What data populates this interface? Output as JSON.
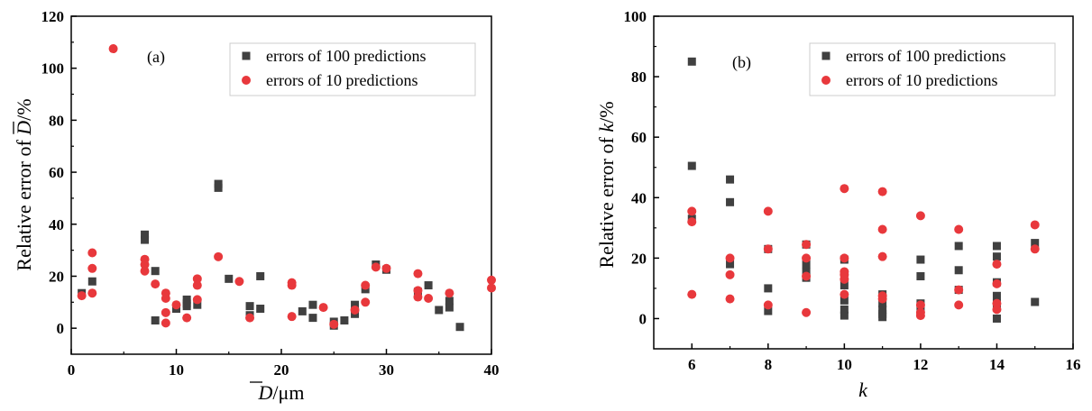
{
  "chart_data": [
    {
      "type": "scatter",
      "panel_label": "(a)",
      "xlabel_var": "D",
      "xlabel_suffix": "/μm",
      "ylabel_prefix": "Relative error of ",
      "ylabel_var": "D",
      "ylabel_suffix": "/%",
      "xlim": [
        0,
        40
      ],
      "ylim": [
        -10,
        120
      ],
      "xticks": [
        "0",
        "10",
        "20",
        "30",
        "40"
      ],
      "xtick_values": [
        0,
        10,
        20,
        30,
        40
      ],
      "yticks": [
        "0",
        "20",
        "40",
        "60",
        "80",
        "100",
        "120"
      ],
      "ytick_values": [
        0,
        20,
        40,
        60,
        80,
        100,
        120
      ],
      "grid": false,
      "legend_position": "top-right",
      "series": [
        {
          "name": "errors of 100 predictions",
          "marker": "square",
          "color": "#404040",
          "points": [
            [
              1,
              13.5
            ],
            [
              2,
              18
            ],
            [
              7,
              36
            ],
            [
              7,
              34
            ],
            [
              8,
              22
            ],
            [
              8,
              3
            ],
            [
              10,
              8
            ],
            [
              10,
              7.5
            ],
            [
              11,
              11
            ],
            [
              11,
              9.5
            ],
            [
              11,
              8.5
            ],
            [
              12,
              9
            ],
            [
              14,
              55.5
            ],
            [
              14,
              54
            ],
            [
              15,
              19
            ],
            [
              17,
              8.5
            ],
            [
              17,
              5
            ],
            [
              18,
              20
            ],
            [
              18,
              7.5
            ],
            [
              22,
              6.5
            ],
            [
              23,
              9
            ],
            [
              23,
              4
            ],
            [
              25,
              2.5
            ],
            [
              25,
              1
            ],
            [
              26,
              3
            ],
            [
              27,
              9
            ],
            [
              27,
              5.5
            ],
            [
              28,
              15
            ],
            [
              29,
              24.5
            ],
            [
              30,
              22.5
            ],
            [
              33,
              14
            ],
            [
              34,
              16.5
            ],
            [
              35,
              7
            ],
            [
              36,
              10.5
            ],
            [
              36,
              8
            ],
            [
              37,
              0.5
            ]
          ]
        },
        {
          "name": "errors of 10 predictions",
          "marker": "circle",
          "color": "#e8383c",
          "points": [
            [
              1,
              12.5
            ],
            [
              2,
              29
            ],
            [
              2,
              23
            ],
            [
              2,
              13.5
            ],
            [
              4,
              107.5
            ],
            [
              7,
              26.5
            ],
            [
              7,
              24.5
            ],
            [
              7,
              22
            ],
            [
              8,
              17
            ],
            [
              9,
              13.5
            ],
            [
              9,
              11.5
            ],
            [
              9,
              6
            ],
            [
              9,
              2
            ],
            [
              10,
              9
            ],
            [
              11,
              4
            ],
            [
              12,
              19
            ],
            [
              12,
              16.5
            ],
            [
              12,
              11
            ],
            [
              14,
              27.5
            ],
            [
              16,
              18
            ],
            [
              17,
              4
            ],
            [
              21,
              17.5
            ],
            [
              21,
              16.5
            ],
            [
              21,
              4.5
            ],
            [
              24,
              8
            ],
            [
              25,
              1.5
            ],
            [
              27,
              7
            ],
            [
              28,
              16.5
            ],
            [
              28,
              10
            ],
            [
              29,
              23.5
            ],
            [
              30,
              23
            ],
            [
              33,
              21
            ],
            [
              33,
              14.5
            ],
            [
              33,
              12
            ],
            [
              34,
              11.5
            ],
            [
              36,
              13.5
            ],
            [
              40,
              18.5
            ],
            [
              40,
              15.5
            ]
          ]
        }
      ]
    },
    {
      "type": "scatter",
      "panel_label": "(b)",
      "xlabel_var": "k",
      "xlabel_suffix": "",
      "ylabel_prefix": "Relative error of ",
      "ylabel_var": "k",
      "ylabel_suffix": "/%",
      "xlim": [
        5,
        16
      ],
      "ylim": [
        -10,
        100
      ],
      "xticks": [
        "6",
        "8",
        "10",
        "12",
        "14",
        "16"
      ],
      "xtick_values": [
        6,
        8,
        10,
        12,
        14,
        16
      ],
      "yticks": [
        "0",
        "20",
        "40",
        "60",
        "80",
        "100"
      ],
      "ytick_values": [
        0,
        20,
        40,
        60,
        80,
        100
      ],
      "grid": false,
      "legend_position": "top-right",
      "series": [
        {
          "name": "errors of 100 predictions",
          "marker": "square",
          "color": "#404040",
          "points": [
            [
              6,
              85
            ],
            [
              6,
              50.5
            ],
            [
              6,
              33
            ],
            [
              7,
              46
            ],
            [
              7,
              38.5
            ],
            [
              7,
              18
            ],
            [
              8,
              23
            ],
            [
              8,
              10
            ],
            [
              8,
              2.5
            ],
            [
              9,
              24.5
            ],
            [
              9,
              18
            ],
            [
              9,
              15.5
            ],
            [
              9,
              13.5
            ],
            [
              10,
              19.5
            ],
            [
              10,
              11
            ],
            [
              10,
              6
            ],
            [
              10,
              3
            ],
            [
              10,
              1
            ],
            [
              11,
              8
            ],
            [
              11,
              5
            ],
            [
              11,
              3
            ],
            [
              11,
              1.5
            ],
            [
              11,
              0.5
            ],
            [
              12,
              19.5
            ],
            [
              12,
              14
            ],
            [
              12,
              5
            ],
            [
              12,
              2.5
            ],
            [
              13,
              24
            ],
            [
              13,
              16
            ],
            [
              13,
              9.5
            ],
            [
              14,
              24
            ],
            [
              14,
              20.5
            ],
            [
              14,
              12
            ],
            [
              14,
              7.5
            ],
            [
              14,
              5
            ],
            [
              14,
              0
            ],
            [
              15,
              25
            ],
            [
              15,
              5.5
            ]
          ]
        },
        {
          "name": "errors of 10 predictions",
          "marker": "circle",
          "color": "#e8383c",
          "points": [
            [
              6,
              35.5
            ],
            [
              6,
              32
            ],
            [
              6,
              8
            ],
            [
              7,
              20
            ],
            [
              7,
              14.5
            ],
            [
              7,
              6.5
            ],
            [
              8,
              35.5
            ],
            [
              8,
              23
            ],
            [
              8,
              4.5
            ],
            [
              9,
              24.5
            ],
            [
              9,
              20
            ],
            [
              9,
              14
            ],
            [
              9,
              2
            ],
            [
              10,
              43
            ],
            [
              10,
              20
            ],
            [
              10,
              15.5
            ],
            [
              10,
              14.5
            ],
            [
              10,
              13
            ],
            [
              10,
              8
            ],
            [
              11,
              42
            ],
            [
              11,
              29.5
            ],
            [
              11,
              20.5
            ],
            [
              11,
              7.5
            ],
            [
              11,
              6.5
            ],
            [
              12,
              34
            ],
            [
              12,
              4.5
            ],
            [
              12,
              2
            ],
            [
              12,
              1
            ],
            [
              13,
              29.5
            ],
            [
              13,
              9.5
            ],
            [
              13,
              4.5
            ],
            [
              14,
              18
            ],
            [
              14,
              11.5
            ],
            [
              14,
              5
            ],
            [
              14,
              3
            ],
            [
              15,
              31
            ],
            [
              15,
              23
            ]
          ]
        }
      ]
    }
  ]
}
